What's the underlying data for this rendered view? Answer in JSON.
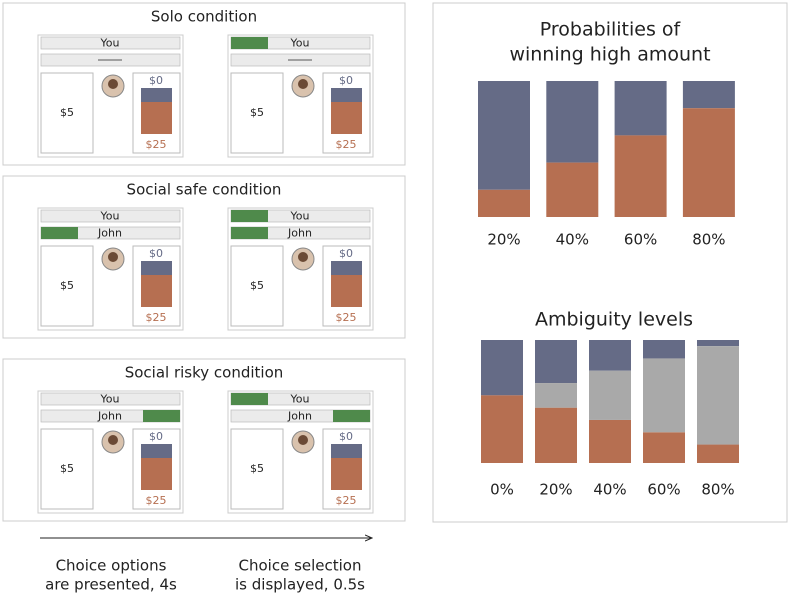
{
  "conditions": [
    {
      "title": "Solo condition",
      "rows": [
        "You"
      ]
    },
    {
      "title": "Social safe condition",
      "rows": [
        "You",
        "John"
      ]
    },
    {
      "title": "Social risky condition",
      "rows": [
        "You",
        "John"
      ]
    }
  ],
  "screen": {
    "safe": "$5",
    "low": "$0",
    "high": "$25"
  },
  "timeline": {
    "first": [
      "Choice options",
      "are presented, 4s"
    ],
    "second": [
      "Choice selection",
      "is displayed, 0.5s"
    ]
  },
  "probabilities": {
    "title": [
      "Probabilities of",
      "winning high amount"
    ],
    "levels": [
      {
        "value": 20,
        "label": "20%"
      },
      {
        "value": 40,
        "label": "40%"
      },
      {
        "value": 60,
        "label": "60%"
      },
      {
        "value": 80,
        "label": "80%"
      }
    ]
  },
  "ambiguity": {
    "title": "Ambiguity levels",
    "levels": [
      {
        "value": 0,
        "label": "0%"
      },
      {
        "value": 20,
        "label": "20%"
      },
      {
        "value": 40,
        "label": "40%"
      },
      {
        "value": 60,
        "label": "60%"
      },
      {
        "value": 80,
        "label": "80%"
      }
    ]
  },
  "colors": {
    "low": "#656b86",
    "high": "#b66f51",
    "ambiguous": "#a9a9a9",
    "choice": "#4f8a4b"
  }
}
